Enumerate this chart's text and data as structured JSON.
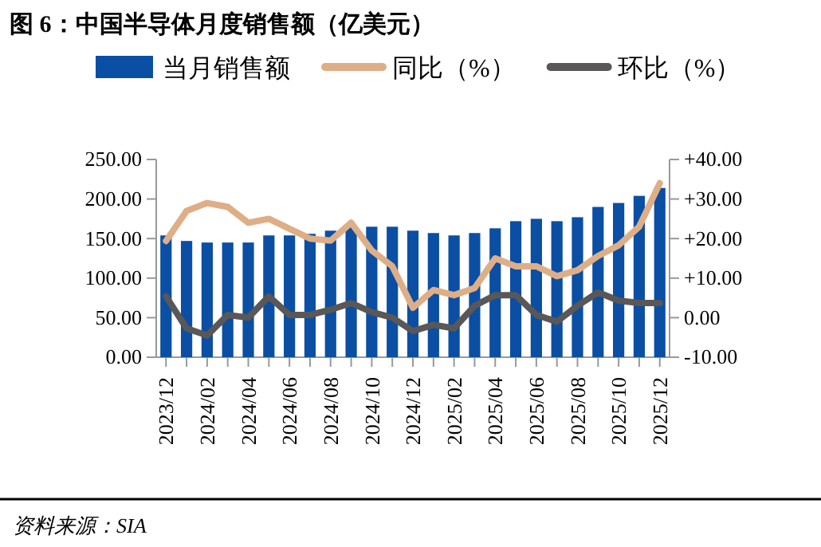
{
  "chart_data": {
    "type": "bar",
    "title": "图 6：中国半导体月度销售额（亿美元）",
    "categories": [
      "2023/12",
      null,
      "2024/02",
      null,
      "2024/04",
      null,
      "2024/06",
      null,
      "2024/08",
      null,
      "2024/10",
      null,
      "2024/12",
      null,
      "2025/02",
      null,
      "2025/04",
      null,
      "2025/06",
      null,
      "2025/08",
      null,
      "2025/10",
      null,
      "2025/12"
    ],
    "series": [
      {
        "name": "当月销售额",
        "color": "#0a4fa3",
        "values": [
          154,
          147,
          145,
          145,
          145,
          154,
          154,
          156,
          160,
          165,
          165,
          165,
          160,
          157,
          154,
          157,
          163,
          172,
          175,
          172,
          177,
          190,
          195,
          204,
          214
        ]
      },
      {
        "name": "同比（%）",
        "type": "line",
        "axis": "y2",
        "color": "#deae86",
        "values": [
          19.4,
          27,
          29,
          28,
          24,
          25,
          22.5,
          20,
          19.5,
          24,
          17,
          13,
          2.5,
          7,
          5.7,
          7.5,
          15,
          13,
          13,
          10.5,
          12,
          15.6,
          18.3,
          23,
          34
        ]
      },
      {
        "name": "环比（%）",
        "type": "line",
        "axis": "y2",
        "color": "#595757",
        "values": [
          5.4,
          -2.7,
          -4.5,
          0.7,
          0,
          5.4,
          0.7,
          0.7,
          2,
          3.7,
          1.4,
          0,
          -3.4,
          -1.8,
          -2.7,
          3,
          5.7,
          5.7,
          0.7,
          -1,
          3,
          6.4,
          4.3,
          3.7,
          3.7
        ]
      }
    ],
    "ylim": [
      0,
      250
    ],
    "yticks": [
      {
        "value": 0,
        "label": "0.00"
      },
      {
        "value": 50,
        "label": "50.00"
      },
      {
        "value": 100,
        "label": "100.00"
      },
      {
        "value": 150,
        "label": "150.00"
      },
      {
        "value": 200,
        "label": "200.00"
      },
      {
        "value": 250,
        "label": "250.00"
      }
    ],
    "y2lim": [
      -10,
      40
    ],
    "y2ticks": [
      {
        "value": -10,
        "label": "-10.00"
      },
      {
        "value": 0,
        "label": "0.00"
      },
      {
        "value": 10,
        "label": "+10.00"
      },
      {
        "value": 20,
        "label": "+20.00"
      },
      {
        "value": 30,
        "label": "+30.00"
      },
      {
        "value": 40,
        "label": "+40.00"
      }
    ],
    "legend": "top",
    "grid": false,
    "annotations": [
      "资料来源：SIA"
    ]
  }
}
